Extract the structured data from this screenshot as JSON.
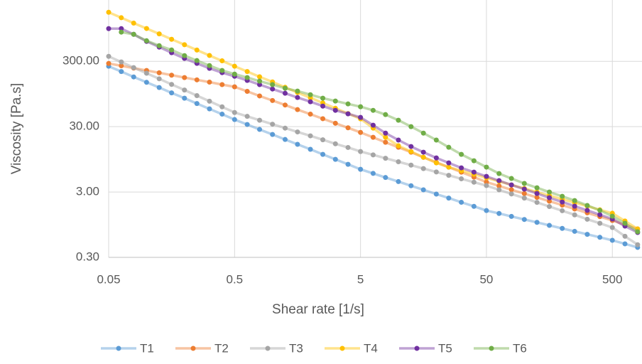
{
  "chart_data": {
    "type": "line",
    "xlabel": "Shear rate [1/s]",
    "ylabel": "Viscosity [Pa.s]",
    "log_x": true,
    "log_y": true,
    "grid": true,
    "legend": "bottom",
    "xlim": [
      0.05,
      860
    ],
    "ylim": [
      0.3,
      2600
    ],
    "xticks": [
      0.05,
      0.5,
      5,
      50,
      500
    ],
    "yticks": [
      {
        "value": 0.3,
        "label": "0.30"
      },
      {
        "value": 3,
        "label": "3.00"
      },
      {
        "value": 30,
        "label": "30.00"
      },
      {
        "value": 300,
        "label": "300.00"
      }
    ],
    "x": [
      0.05,
      0.063,
      0.079,
      0.1,
      0.126,
      0.158,
      0.2,
      0.251,
      0.316,
      0.398,
      0.5,
      0.63,
      0.79,
      1,
      1.26,
      1.58,
      2,
      2.51,
      3.16,
      3.98,
      5,
      6.3,
      7.9,
      10,
      12.6,
      15.8,
      20,
      25.1,
      31.6,
      39.8,
      50,
      63,
      79,
      100,
      126,
      158,
      200,
      251,
      316,
      398,
      500,
      630,
      794
    ],
    "series": [
      {
        "name": "T1",
        "color": "#5b9bd5",
        "values": [
          252,
          209,
          173,
          143,
          119,
          98.6,
          81.7,
          67.8,
          56.1,
          46.6,
          38.5,
          32.4,
          27.2,
          22.8,
          19.1,
          16.1,
          13.5,
          11.3,
          9.49,
          7.96,
          6.68,
          5.78,
          5.0,
          4.33,
          3.74,
          3.24,
          2.79,
          2.42,
          2.09,
          1.81,
          1.56,
          1.41,
          1.27,
          1.14,
          1.03,
          0.925,
          0.832,
          0.75,
          0.675,
          0.608,
          0.547,
          0.483,
          0.426
        ]
      },
      {
        "name": "T2",
        "color": "#ed7d31",
        "values": [
          278,
          256,
          236,
          217,
          200,
          184,
          169,
          156,
          144,
          132,
          122,
          104,
          88.5,
          75.3,
          64.3,
          54.7,
          46.6,
          39.7,
          33.8,
          28.8,
          24.5,
          20.6,
          17.3,
          14.5,
          12.2,
          10.2,
          8.57,
          7.19,
          6.04,
          5.07,
          4.26,
          3.72,
          3.25,
          2.84,
          2.48,
          2.17,
          1.89,
          1.65,
          1.44,
          1.26,
          1.1,
          0.948,
          0.817
        ]
      },
      {
        "name": "T3",
        "color": "#a5a5a5",
        "values": [
          357,
          293,
          240,
          197,
          162,
          133,
          109,
          89.5,
          73.5,
          60.3,
          49.4,
          43.1,
          37.6,
          32.7,
          28.5,
          24.9,
          21.7,
          18.9,
          16.4,
          14.4,
          12.5,
          11.1,
          9.84,
          8.71,
          7.73,
          6.85,
          6.08,
          5.4,
          4.78,
          4.24,
          3.76,
          3.24,
          2.8,
          2.42,
          2.08,
          1.8,
          1.55,
          1.34,
          1.15,
          0.995,
          0.859,
          0.631,
          0.468
        ]
      },
      {
        "name": "T4",
        "color": "#ffc000",
        "values": [
          1687,
          1393,
          1153,
          953,
          789,
          652,
          538,
          446,
          368,
          305,
          252,
          209,
          174,
          145,
          120,
          99.8,
          83.0,
          69.0,
          57.3,
          47.6,
          39.5,
          28.5,
          20.6,
          15.3,
          12.5,
          10.2,
          8.37,
          7.19,
          6.35,
          5.61,
          4.94,
          4.36,
          3.85,
          3.4,
          3.0,
          2.65,
          2.33,
          2.06,
          1.82,
          1.6,
          1.42,
          1.08,
          0.817
        ]
      },
      {
        "name": "T5",
        "color": "#7030a0",
        "values": [
          948,
          948,
          776,
          605,
          495,
          406,
          332,
          279,
          234,
          201,
          177,
          153,
          132,
          113,
          97.3,
          83.7,
          72.1,
          61.9,
          53.3,
          47.1,
          41.6,
          31.6,
          23.9,
          18.7,
          14.9,
          12.2,
          9.98,
          8.37,
          7.03,
          6.05,
          5.2,
          4.48,
          3.85,
          3.32,
          2.85,
          2.45,
          2.11,
          1.82,
          1.57,
          1.35,
          1.16,
          0.902,
          0.721
        ]
      },
      {
        "name": "T6",
        "color": "#70ad47",
        "values": [
          null,
          838,
          776,
          619,
          520,
          448,
          366,
          308,
          258,
          217,
          191,
          169,
          149,
          132,
          116,
          105,
          92.5,
          81.7,
          74.0,
          66.8,
          60.5,
          53.3,
          45.9,
          37.6,
          30.0,
          23.9,
          18.7,
          14.5,
          11.3,
          9.02,
          7.21,
          5.75,
          4.83,
          4.06,
          3.48,
          3.0,
          2.58,
          2.22,
          1.87,
          1.57,
          1.28,
          0.998,
          0.74
        ]
      }
    ]
  }
}
